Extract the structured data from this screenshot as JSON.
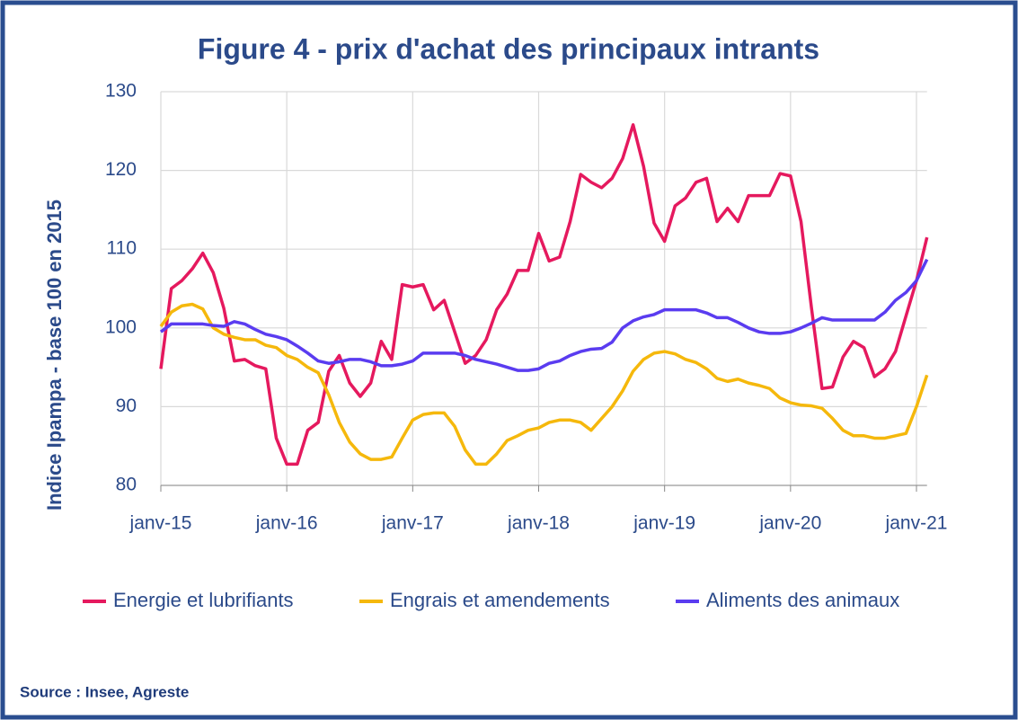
{
  "chart_data": {
    "type": "line",
    "title": "Figure 4 - prix d'achat des principaux intrants",
    "y_label": "Indice Ipampa - base 100 en 2015",
    "source": "Source : Insee, Agreste",
    "categories": [
      "janv-15",
      null,
      null,
      null,
      null,
      null,
      null,
      null,
      null,
      null,
      null,
      null,
      "janv-16",
      null,
      null,
      null,
      null,
      null,
      null,
      null,
      null,
      null,
      null,
      null,
      "janv-17",
      null,
      null,
      null,
      null,
      null,
      null,
      null,
      null,
      null,
      null,
      null,
      "janv-18",
      null,
      null,
      null,
      null,
      null,
      null,
      null,
      null,
      null,
      null,
      null,
      "janv-19",
      null,
      null,
      null,
      null,
      null,
      null,
      null,
      null,
      null,
      null,
      null,
      "janv-20",
      null,
      null,
      null,
      null,
      null,
      null,
      null,
      null,
      null,
      null,
      null,
      "janv-21",
      null
    ],
    "ylim": [
      80,
      130
    ],
    "yticks": [
      80,
      90,
      100,
      110,
      120,
      130
    ],
    "grid": true,
    "legend": "bottom",
    "series": [
      {
        "name": "Energie et lubrifiants",
        "color": "#e5195e",
        "values": [
          94.8,
          105,
          106,
          107.5,
          109.5,
          107,
          102.5,
          95.8,
          96,
          95.2,
          94.8,
          86,
          82.7,
          82.7,
          87,
          88,
          94.5,
          96.5,
          93,
          91.3,
          93,
          98.3,
          96,
          105.5,
          105.2,
          105.5,
          102.3,
          103.5,
          99.5,
          95.5,
          96.5,
          98.5,
          102.3,
          104.3,
          107.3,
          107.3,
          112,
          108.5,
          109,
          113.5,
          119.5,
          118.5,
          117.8,
          119,
          121.5,
          125.8,
          120.5,
          113.3,
          111,
          115.5,
          116.5,
          118.5,
          119,
          113.5,
          115.2,
          113.5,
          116.8,
          116.8,
          116.8,
          119.6,
          119.3,
          113.5,
          102.5,
          92.3,
          92.5,
          96.3,
          98.3,
          97.5,
          93.8,
          94.8,
          97,
          101.5,
          106,
          111.5
        ]
      },
      {
        "name": "Engrais et amendements",
        "color": "#f5b80c",
        "values": [
          100.2,
          102,
          102.8,
          103,
          102.4,
          100,
          99.2,
          98.8,
          98.5,
          98.5,
          97.8,
          97.5,
          96.5,
          96,
          95,
          94.3,
          91.5,
          88,
          85.5,
          84,
          83.3,
          83.3,
          83.6,
          86,
          88.3,
          89,
          89.2,
          89.2,
          87.5,
          84.5,
          82.7,
          82.7,
          84,
          85.7,
          86.3,
          87,
          87.3,
          88,
          88.3,
          88.3,
          88,
          87,
          88.5,
          90,
          92,
          94.5,
          96,
          96.8,
          97,
          96.7,
          96,
          95.6,
          94.8,
          93.6,
          93.2,
          93.5,
          93,
          92.7,
          92.3,
          91.1,
          90.5,
          90.2,
          90.1,
          89.8,
          88.5,
          87,
          86.3,
          86.3,
          86,
          86,
          86.3,
          86.6,
          90,
          94
        ]
      },
      {
        "name": "Aliments des animaux",
        "color": "#5a3cf0",
        "values": [
          99.5,
          100.5,
          100.5,
          100.5,
          100.5,
          100.3,
          100.2,
          100.8,
          100.5,
          99.8,
          99.2,
          98.9,
          98.5,
          97.7,
          96.8,
          95.8,
          95.5,
          95.7,
          96,
          96,
          95.7,
          95.2,
          95.2,
          95.4,
          95.8,
          96.8,
          96.8,
          96.8,
          96.8,
          96.5,
          96,
          95.7,
          95.4,
          95,
          94.6,
          94.6,
          94.8,
          95.5,
          95.8,
          96.5,
          97,
          97.3,
          97.4,
          98.2,
          100,
          100.9,
          101.4,
          101.7,
          102.3,
          102.3,
          102.3,
          102.3,
          101.9,
          101.3,
          101.3,
          100.7,
          100,
          99.5,
          99.3,
          99.3,
          99.5,
          100,
          100.6,
          101.3,
          101,
          101,
          101,
          101,
          101,
          102,
          103.5,
          104.5,
          106,
          108.7
        ]
      }
    ]
  }
}
